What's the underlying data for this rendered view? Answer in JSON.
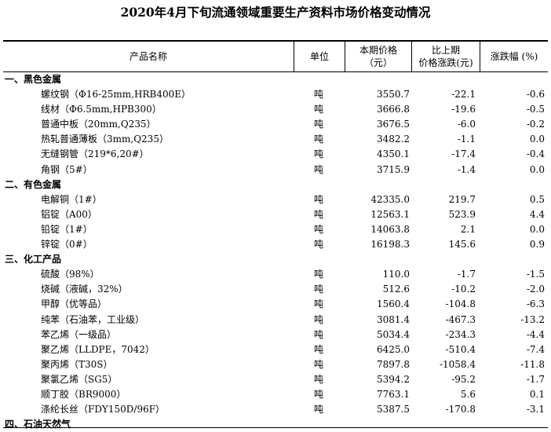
{
  "title": "2020年4月下旬流通领域重要生产资料市场价格变动情况",
  "header": {
    "name": "产品名称",
    "unit": "单位",
    "price": [
      "本期价格",
      "（元）"
    ],
    "change": [
      "比上期",
      "价格涨跌(元)"
    ],
    "pct": "涨跌幅 (%)"
  },
  "rows": [
    {
      "category": "一、黑色金属"
    },
    {
      "name": "螺纹钢（Φ16-25mm,HRB400E）",
      "unit": "吨",
      "price": "3550.7",
      "change": "-22.1",
      "pct": "-0.6"
    },
    {
      "name": "线材（Φ6.5mm,HPB300）",
      "unit": "吨",
      "price": "3666.8",
      "change": "-19.6",
      "pct": "-0.5"
    },
    {
      "name": "普通中板（20mm,Q235）",
      "unit": "吨",
      "price": "3676.5",
      "change": "-6.0",
      "pct": "-0.2"
    },
    {
      "name": "热轧普通薄板（3mm,Q235）",
      "unit": "吨",
      "price": "3482.2",
      "change": "-1.1",
      "pct": "0.0"
    },
    {
      "name": "无缝钢管（219*6,20#）",
      "unit": "吨",
      "price": "4350.1",
      "change": "-17.4",
      "pct": "-0.4"
    },
    {
      "name": "角钢（5#）",
      "unit": "吨",
      "price": "3715.9",
      "change": "-1.4",
      "pct": "0.0"
    },
    {
      "category": "二、有色金属"
    },
    {
      "name": "电解铜（1#）",
      "unit": "吨",
      "price": "42335.0",
      "change": "219.7",
      "pct": "0.5"
    },
    {
      "name": "铝锭（A00）",
      "unit": "吨",
      "price": "12563.1",
      "change": "523.9",
      "pct": "4.4"
    },
    {
      "name": "铅锭（1#）",
      "unit": "吨",
      "price": "14063.8",
      "change": "2.1",
      "pct": "0.0"
    },
    {
      "name": "锌锭（0#）",
      "unit": "吨",
      "price": "16198.3",
      "change": "145.6",
      "pct": "0.9"
    },
    {
      "category": "三、化工产品"
    },
    {
      "name": "硫酸（98%）",
      "unit": "吨",
      "price": "110.0",
      "change": "-1.7",
      "pct": "-1.5"
    },
    {
      "name": "烧碱（液碱，32%）",
      "unit": "吨",
      "price": "512.6",
      "change": "-10.2",
      "pct": "-2.0"
    },
    {
      "name": "甲醇（优等品）",
      "unit": "吨",
      "price": "1560.4",
      "change": "-104.8",
      "pct": "-6.3"
    },
    {
      "name": "纯苯（石油苯，工业级）",
      "unit": "吨",
      "price": "3081.4",
      "change": "-467.3",
      "pct": "-13.2"
    },
    {
      "name": "苯乙烯（一级品）",
      "unit": "吨",
      "price": "5034.4",
      "change": "-234.3",
      "pct": "-4.4"
    },
    {
      "name": "聚乙烯（LLDPE，7042）",
      "unit": "吨",
      "price": "6425.0",
      "change": "-510.4",
      "pct": "-7.4"
    },
    {
      "name": "聚丙烯（T30S）",
      "unit": "吨",
      "price": "7897.8",
      "change": "-1058.4",
      "pct": "-11.8"
    },
    {
      "name": "聚氯乙烯（SG5）",
      "unit": "吨",
      "price": "5394.2",
      "change": "-95.2",
      "pct": "-1.7"
    },
    {
      "name": "顺丁胶（BR9000）",
      "unit": "吨",
      "price": "7763.1",
      "change": "5.6",
      "pct": "0.1"
    },
    {
      "name": "涤纶长丝（FDY150D/96F）",
      "unit": "吨",
      "price": "5387.5",
      "change": "-170.8",
      "pct": "-3.1"
    },
    {
      "category": "四、石油天然气"
    }
  ]
}
